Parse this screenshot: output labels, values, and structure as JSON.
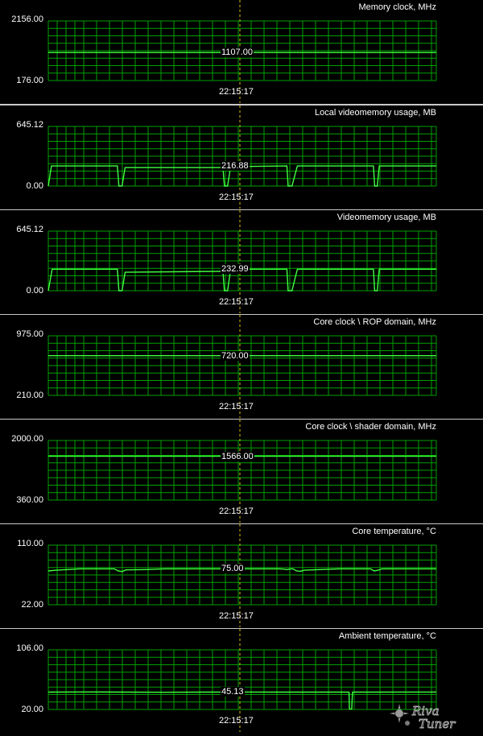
{
  "graphs": [
    {
      "title": "Memory clock, MHz",
      "max_label": "2156.00",
      "min_label": "176.00",
      "current_label": "1107.00",
      "time_label": "22:15:17",
      "ymin": 176,
      "ymax": 2156,
      "trace": [
        [
          0,
          1107
        ],
        [
          1,
          1107
        ]
      ]
    },
    {
      "title": "Local videomemory usage, MB",
      "max_label": "645.12",
      "min_label": "0.00",
      "current_label": "216.88",
      "time_label": "22:15:17",
      "ymin": 0,
      "ymax": 645.12,
      "trace": [
        [
          0,
          0
        ],
        [
          0.008,
          216.88
        ],
        [
          0.178,
          216.88
        ],
        [
          0.182,
          0
        ],
        [
          0.19,
          0
        ],
        [
          0.198,
          200
        ],
        [
          0.45,
          200
        ],
        [
          0.454,
          0
        ],
        [
          0.462,
          0
        ],
        [
          0.47,
          210
        ],
        [
          0.615,
          216.88
        ],
        [
          0.618,
          0
        ],
        [
          0.628,
          0
        ],
        [
          0.642,
          216.88
        ],
        [
          0.838,
          216.88
        ],
        [
          0.841,
          0
        ],
        [
          0.848,
          0
        ],
        [
          0.853,
          216.88
        ],
        [
          1,
          216.88
        ]
      ]
    },
    {
      "title": "Videomemory usage, MB",
      "max_label": "645.12",
      "min_label": "0.00",
      "current_label": "232.99",
      "time_label": "22:15:17",
      "ymin": 0,
      "ymax": 645.12,
      "trace": [
        [
          0,
          0
        ],
        [
          0.01,
          232.99
        ],
        [
          0.178,
          232.99
        ],
        [
          0.182,
          0
        ],
        [
          0.19,
          0
        ],
        [
          0.198,
          200
        ],
        [
          0.45,
          210
        ],
        [
          0.454,
          0
        ],
        [
          0.462,
          0
        ],
        [
          0.47,
          232.99
        ],
        [
          0.615,
          232.99
        ],
        [
          0.618,
          0
        ],
        [
          0.628,
          0
        ],
        [
          0.642,
          232.99
        ],
        [
          0.838,
          232.99
        ],
        [
          0.841,
          0
        ],
        [
          0.848,
          0
        ],
        [
          0.853,
          232.99
        ],
        [
          1,
          232.99
        ]
      ]
    },
    {
      "title": "Core clock \\ ROP domain, MHz",
      "max_label": "975.00",
      "min_label": "210.00",
      "current_label": "720.00",
      "time_label": "22:15:17",
      "ymin": 210,
      "ymax": 975,
      "trace": [
        [
          0,
          720
        ],
        [
          1,
          720
        ]
      ]
    },
    {
      "title": "Core clock \\ shader domain, MHz",
      "max_label": "2000.00",
      "min_label": "360.00",
      "current_label": "1566.00",
      "time_label": "22:15:17",
      "ymin": 360,
      "ymax": 2000,
      "trace": [
        [
          0,
          1566
        ],
        [
          1,
          1566
        ]
      ]
    },
    {
      "title": "Core temperature, °C",
      "max_label": "110.00",
      "min_label": "22.00",
      "current_label": "75.00",
      "time_label": "22:15:17",
      "ymin": 22,
      "ymax": 110,
      "trace": [
        [
          0,
          72
        ],
        [
          0.02,
          73
        ],
        [
          0.05,
          74
        ],
        [
          0.08,
          75
        ],
        [
          0.12,
          75
        ],
        [
          0.17,
          75
        ],
        [
          0.18,
          72
        ],
        [
          0.19,
          71
        ],
        [
          0.2,
          73.5
        ],
        [
          0.25,
          74
        ],
        [
          0.3,
          75
        ],
        [
          0.35,
          75
        ],
        [
          0.45,
          75
        ],
        [
          0.455,
          73
        ],
        [
          0.465,
          73.5
        ],
        [
          0.47,
          75
        ],
        [
          0.6,
          75
        ],
        [
          0.615,
          74
        ],
        [
          0.625,
          75
        ],
        [
          0.63,
          75
        ],
        [
          0.64,
          72
        ],
        [
          0.65,
          71.5
        ],
        [
          0.66,
          73
        ],
        [
          0.7,
          74
        ],
        [
          0.75,
          75
        ],
        [
          0.83,
          75
        ],
        [
          0.84,
          72
        ],
        [
          0.85,
          73
        ],
        [
          0.86,
          75
        ],
        [
          1,
          75
        ]
      ]
    },
    {
      "title": "Ambient temperature, °C",
      "max_label": "106.00",
      "min_label": "20.00",
      "current_label": "45.13",
      "time_label": "22:15:17",
      "ymin": 20,
      "ymax": 106,
      "trace": [
        [
          0,
          45
        ],
        [
          0.1,
          45.2
        ],
        [
          0.2,
          45
        ],
        [
          0.3,
          44.8
        ],
        [
          0.4,
          45
        ],
        [
          0.5,
          45.1
        ],
        [
          0.6,
          45
        ],
        [
          0.7,
          45
        ],
        [
          0.775,
          45
        ],
        [
          0.776,
          20.5
        ],
        [
          0.782,
          20.5
        ],
        [
          0.784,
          45
        ],
        [
          0.85,
          45
        ],
        [
          0.9,
          45.1
        ],
        [
          1,
          45.13
        ]
      ]
    }
  ],
  "watermark": "RivaTuner",
  "colors": {
    "grid": "#00a000",
    "trace": "#40ff40",
    "cursor": "#e0c000",
    "background": "#000000",
    "separator": "#c8c8c8"
  }
}
